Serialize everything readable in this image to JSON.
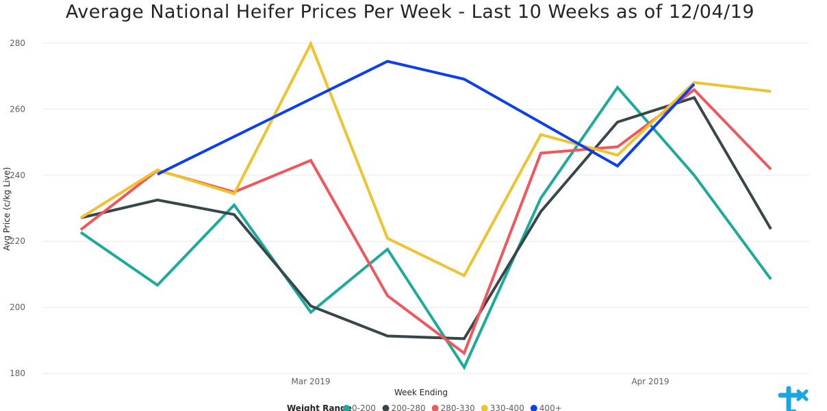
{
  "chart_data": {
    "type": "line",
    "title": "Average National Heifer Prices Per Week - Last 10 Weeks as of 12/04/19",
    "xlabel": "Week Ending",
    "ylabel": "Avg Price (c/kg Live)",
    "ylim": [
      180,
      280
    ],
    "y_ticks": [
      180,
      200,
      220,
      240,
      260,
      280
    ],
    "x_ticks": [
      "Mar 2019",
      "Apr 2019"
    ],
    "grid": "horizontal",
    "legend_title": "Weight Range",
    "legend_placement": "bottom",
    "x": [
      "2019-02-08",
      "2019-02-15",
      "2019-02-22",
      "2019-03-01",
      "2019-03-08",
      "2019-03-15",
      "2019-03-22",
      "2019-03-29",
      "2019-04-05",
      "2019-04-12"
    ],
    "series": [
      {
        "name": "0-200",
        "color": "#1aab9b",
        "values": [
          222.7,
          206.7,
          231.0,
          198.5,
          217.6,
          181.8,
          233.1,
          266.6,
          240.0,
          208.5
        ]
      },
      {
        "name": "200-280",
        "color": "#374649",
        "values": [
          227.1,
          232.5,
          228.1,
          200.4,
          191.3,
          190.5,
          229.0,
          256.1,
          263.5,
          223.7
        ]
      },
      {
        "name": "280-330",
        "color": "#f2555a",
        "values": [
          223.5,
          241.5,
          234.9,
          244.5,
          203.5,
          186.1,
          246.7,
          248.6,
          265.9,
          241.8
        ]
      },
      {
        "name": "330-400",
        "color": "#f0c22c",
        "values": [
          227.1,
          241.6,
          234.4,
          279.8,
          220.9,
          209.6,
          252.3,
          246.1,
          268.1,
          265.4
        ]
      },
      {
        "name": "400+",
        "color": "#0a3ef2",
        "values": [
          null,
          240.3,
          null,
          null,
          274.5,
          269.1,
          null,
          242.8,
          267.6,
          null
        ]
      }
    ]
  },
  "brand": {
    "logo": "tick-logo-icon",
    "color": "#1aa7e0"
  }
}
